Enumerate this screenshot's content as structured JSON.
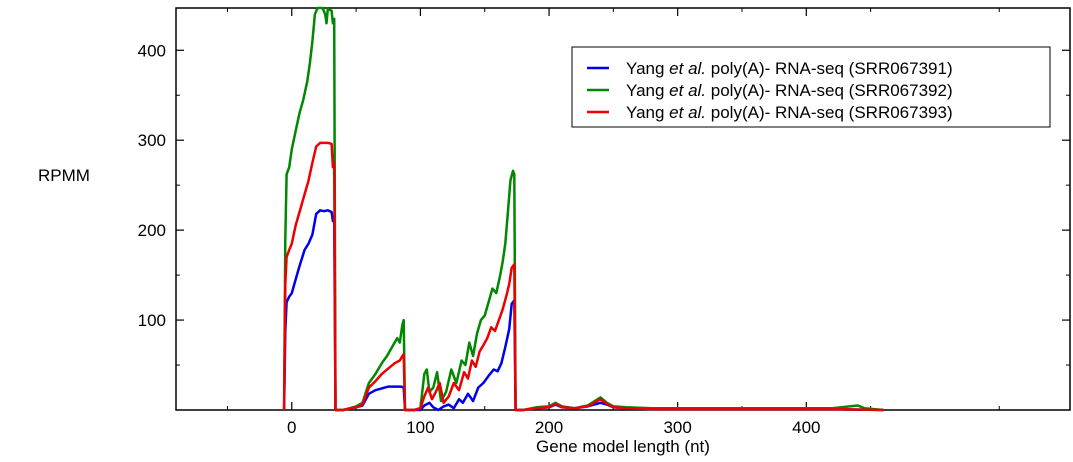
{
  "chart_data": {
    "type": "line",
    "title": "",
    "xlabel": "Gene model length (nt)",
    "ylabel": "RPMM",
    "xlim": [
      -90,
      605
    ],
    "ylim": [
      0,
      447
    ],
    "x_ticks": [
      0,
      100,
      200,
      300,
      400
    ],
    "x_tick_labels": [
      "0",
      "100",
      "200",
      "300",
      "400"
    ],
    "x_minor_ticks": [
      -50,
      50,
      150,
      250,
      350,
      450,
      550
    ],
    "y_ticks": [
      100,
      200,
      300,
      400
    ],
    "y_tick_labels": [
      "100",
      "200",
      "300",
      "400"
    ],
    "y_minor_ticks": [
      50,
      150,
      250,
      350
    ],
    "grid": false,
    "legend_position": "top-right",
    "series": [
      {
        "name": "Yang et al. poly(A)- RNA-seq (SRR067391)",
        "legend_prefix": "Yang ",
        "legend_italic": "et al.",
        "legend_suffix": " poly(A)- RNA-seq (SRR067391)",
        "color": "#0000ee",
        "points": [
          [
            -6,
            0
          ],
          [
            -5,
            88
          ],
          [
            -4,
            120
          ],
          [
            -2,
            126
          ],
          [
            0,
            130
          ],
          [
            3,
            145
          ],
          [
            6,
            160
          ],
          [
            10,
            178
          ],
          [
            13,
            185
          ],
          [
            16,
            195
          ],
          [
            19,
            218
          ],
          [
            22,
            222
          ],
          [
            25,
            221
          ],
          [
            28,
            222
          ],
          [
            31,
            220
          ],
          [
            32,
            210
          ],
          [
            33,
            212
          ],
          [
            34,
            0
          ],
          [
            40,
            0
          ],
          [
            50,
            3
          ],
          [
            55,
            5
          ],
          [
            60,
            18
          ],
          [
            65,
            22
          ],
          [
            70,
            24
          ],
          [
            75,
            26
          ],
          [
            80,
            26
          ],
          [
            85,
            26
          ],
          [
            87,
            25
          ],
          [
            88,
            0
          ],
          [
            95,
            0
          ],
          [
            100,
            0
          ],
          [
            103,
            5
          ],
          [
            107,
            8
          ],
          [
            110,
            3
          ],
          [
            114,
            0
          ],
          [
            118,
            4
          ],
          [
            122,
            6
          ],
          [
            126,
            2
          ],
          [
            130,
            12
          ],
          [
            133,
            8
          ],
          [
            137,
            18
          ],
          [
            141,
            10
          ],
          [
            145,
            25
          ],
          [
            149,
            30
          ],
          [
            153,
            38
          ],
          [
            157,
            45
          ],
          [
            160,
            43
          ],
          [
            163,
            52
          ],
          [
            166,
            70
          ],
          [
            169,
            90
          ],
          [
            171,
            118
          ],
          [
            173,
            122
          ],
          [
            174,
            0
          ],
          [
            180,
            0
          ],
          [
            190,
            2
          ],
          [
            200,
            3
          ],
          [
            205,
            6
          ],
          [
            210,
            3
          ],
          [
            220,
            2
          ],
          [
            230,
            4
          ],
          [
            240,
            8
          ],
          [
            245,
            6
          ],
          [
            250,
            3
          ],
          [
            260,
            2
          ],
          [
            280,
            1
          ],
          [
            300,
            1
          ],
          [
            340,
            1
          ],
          [
            380,
            1
          ],
          [
            420,
            1
          ],
          [
            460,
            0
          ]
        ]
      },
      {
        "name": "Yang et al. poly(A)- RNA-seq (SRR067392)",
        "legend_prefix": "Yang ",
        "legend_italic": "et al.",
        "legend_suffix": " poly(A)- RNA-seq (SRR067392)",
        "color": "#008800",
        "points": [
          [
            -6,
            0
          ],
          [
            -5,
            190
          ],
          [
            -4,
            262
          ],
          [
            -2,
            270
          ],
          [
            0,
            290
          ],
          [
            3,
            310
          ],
          [
            6,
            330
          ],
          [
            9,
            345
          ],
          [
            12,
            365
          ],
          [
            14,
            385
          ],
          [
            16,
            410
          ],
          [
            18,
            440
          ],
          [
            20,
            447
          ],
          [
            22,
            447
          ],
          [
            24,
            447
          ],
          [
            26,
            440
          ],
          [
            27,
            430
          ],
          [
            28,
            446
          ],
          [
            31,
            444
          ],
          [
            32,
            430
          ],
          [
            33,
            435
          ],
          [
            34,
            0
          ],
          [
            40,
            0
          ],
          [
            50,
            4
          ],
          [
            55,
            8
          ],
          [
            60,
            30
          ],
          [
            65,
            40
          ],
          [
            70,
            52
          ],
          [
            74,
            60
          ],
          [
            78,
            70
          ],
          [
            82,
            80
          ],
          [
            84,
            75
          ],
          [
            86,
            95
          ],
          [
            87,
            100
          ],
          [
            88,
            0
          ],
          [
            95,
            0
          ],
          [
            100,
            2
          ],
          [
            103,
            40
          ],
          [
            105,
            45
          ],
          [
            107,
            20
          ],
          [
            110,
            25
          ],
          [
            113,
            42
          ],
          [
            116,
            10
          ],
          [
            120,
            20
          ],
          [
            124,
            45
          ],
          [
            128,
            30
          ],
          [
            132,
            55
          ],
          [
            135,
            50
          ],
          [
            138,
            75
          ],
          [
            141,
            60
          ],
          [
            144,
            85
          ],
          [
            147,
            100
          ],
          [
            150,
            105
          ],
          [
            153,
            120
          ],
          [
            156,
            135
          ],
          [
            159,
            130
          ],
          [
            162,
            150
          ],
          [
            164,
            165
          ],
          [
            166,
            185
          ],
          [
            168,
            220
          ],
          [
            170,
            255
          ],
          [
            172,
            266
          ],
          [
            173,
            262
          ],
          [
            174,
            0
          ],
          [
            180,
            0
          ],
          [
            190,
            3
          ],
          [
            200,
            4
          ],
          [
            205,
            8
          ],
          [
            210,
            4
          ],
          [
            220,
            2
          ],
          [
            230,
            5
          ],
          [
            240,
            14
          ],
          [
            245,
            8
          ],
          [
            250,
            4
          ],
          [
            260,
            3
          ],
          [
            280,
            2
          ],
          [
            300,
            2
          ],
          [
            340,
            2
          ],
          [
            380,
            2
          ],
          [
            420,
            2
          ],
          [
            440,
            5
          ],
          [
            445,
            2
          ],
          [
            460,
            0
          ]
        ]
      },
      {
        "name": "Yang et al. poly(A)- RNA-seq (SRR067393)",
        "legend_prefix": "Yang ",
        "legend_italic": "et al.",
        "legend_suffix": " poly(A)- RNA-seq (SRR067393)",
        "color": "#ee0000",
        "points": [
          [
            -6,
            0
          ],
          [
            -5,
            140
          ],
          [
            -4,
            170
          ],
          [
            -2,
            178
          ],
          [
            0,
            185
          ],
          [
            3,
            205
          ],
          [
            6,
            220
          ],
          [
            10,
            240
          ],
          [
            13,
            255
          ],
          [
            16,
            275
          ],
          [
            19,
            293
          ],
          [
            22,
            297
          ],
          [
            25,
            297
          ],
          [
            28,
            297
          ],
          [
            31,
            296
          ],
          [
            32,
            270
          ],
          [
            33,
            275
          ],
          [
            34,
            0
          ],
          [
            40,
            0
          ],
          [
            50,
            3
          ],
          [
            55,
            6
          ],
          [
            60,
            25
          ],
          [
            65,
            32
          ],
          [
            70,
            40
          ],
          [
            75,
            46
          ],
          [
            80,
            52
          ],
          [
            84,
            55
          ],
          [
            86,
            60
          ],
          [
            87,
            62
          ],
          [
            88,
            0
          ],
          [
            95,
            0
          ],
          [
            100,
            2
          ],
          [
            103,
            15
          ],
          [
            106,
            25
          ],
          [
            109,
            12
          ],
          [
            112,
            20
          ],
          [
            115,
            30
          ],
          [
            118,
            8
          ],
          [
            122,
            15
          ],
          [
            126,
            30
          ],
          [
            130,
            22
          ],
          [
            134,
            42
          ],
          [
            137,
            35
          ],
          [
            140,
            55
          ],
          [
            143,
            48
          ],
          [
            146,
            65
          ],
          [
            149,
            72
          ],
          [
            152,
            80
          ],
          [
            155,
            92
          ],
          [
            158,
            88
          ],
          [
            161,
            100
          ],
          [
            164,
            112
          ],
          [
            167,
            128
          ],
          [
            169,
            140
          ],
          [
            171,
            158
          ],
          [
            173,
            162
          ],
          [
            174,
            0
          ],
          [
            180,
            0
          ],
          [
            190,
            2
          ],
          [
            200,
            3
          ],
          [
            205,
            7
          ],
          [
            210,
            3
          ],
          [
            220,
            2
          ],
          [
            230,
            4
          ],
          [
            240,
            12
          ],
          [
            245,
            7
          ],
          [
            250,
            3
          ],
          [
            260,
            2
          ],
          [
            280,
            1
          ],
          [
            300,
            1
          ],
          [
            340,
            1
          ],
          [
            380,
            1
          ],
          [
            420,
            1
          ],
          [
            460,
            0
          ]
        ]
      }
    ]
  }
}
